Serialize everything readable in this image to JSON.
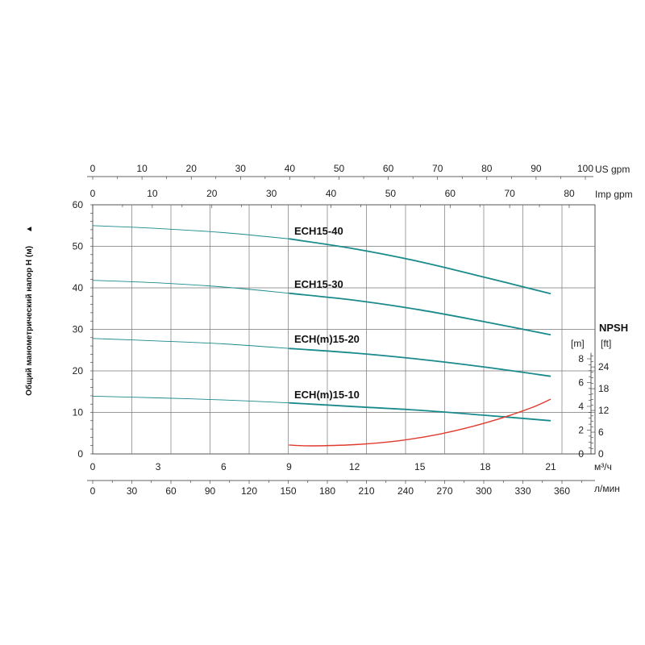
{
  "chart_data": {
    "type": "line",
    "ylabel": "Общий манометрический напор H (м)",
    "y_arrow": "▲",
    "ylim": [
      0,
      60
    ],
    "y_ticks": [
      "0",
      "10",
      "20",
      "30",
      "40",
      "50",
      "60"
    ],
    "x_m3h": {
      "ticks": [
        "0",
        "3",
        "6",
        "9",
        "12",
        "15",
        "18",
        "21"
      ],
      "unit": "м³/ч",
      "range": [
        0,
        23.4
      ]
    },
    "x_lmin": {
      "ticks": [
        "0",
        "30",
        "60",
        "90",
        "120",
        "150",
        "180",
        "210",
        "240",
        "270",
        "300",
        "330",
        "360"
      ],
      "unit": "л/мин"
    },
    "x_us_gpm": {
      "ticks": [
        "0",
        "10",
        "20",
        "30",
        "40",
        "50",
        "60",
        "70",
        "80",
        "90",
        "100"
      ],
      "unit": "US gpm"
    },
    "x_imp_gpm": {
      "ticks": [
        "0",
        "10",
        "20",
        "30",
        "40",
        "50",
        "60",
        "70",
        "80"
      ],
      "unit": "Imp gpm"
    },
    "npsh": {
      "title": "NPSH",
      "unit_m": "[m]",
      "unit_ft": "[ft]",
      "m_ticks": [
        "0",
        "2",
        "4",
        "6",
        "8"
      ],
      "ft_ticks": [
        "0",
        "6",
        "12",
        "18",
        "24"
      ],
      "ylim_m": [
        0,
        9
      ]
    },
    "series": [
      {
        "name": "ECH15-40",
        "color": "#1a8a8c",
        "x": [
          0,
          3,
          6,
          9,
          12,
          15,
          18,
          21
        ],
        "values": [
          55,
          54.3,
          53.3,
          51.8,
          49.4,
          46.3,
          42.5,
          38.6
        ]
      },
      {
        "name": "ECH15-30",
        "color": "#1a8a8c",
        "x": [
          0,
          3,
          6,
          9,
          12,
          15,
          18,
          21
        ],
        "values": [
          41.8,
          41.2,
          40.2,
          38.7,
          37,
          34.7,
          31.8,
          28.7
        ]
      },
      {
        "name": "ECH(m)15-20",
        "color": "#1a8a8c",
        "x": [
          0,
          3,
          6,
          9,
          12,
          15,
          18,
          21
        ],
        "values": [
          27.8,
          27.2,
          26.5,
          25.4,
          24.3,
          22.8,
          20.9,
          18.7
        ]
      },
      {
        "name": "ECH(m)15-10",
        "color": "#1a8a8c",
        "x": [
          0,
          3,
          6,
          9,
          12,
          15,
          18,
          21
        ],
        "values": [
          13.9,
          13.5,
          13,
          12.3,
          11.4,
          10.5,
          9.3,
          8
        ]
      }
    ],
    "npsh_curve": {
      "color": "#e03a2e",
      "x": [
        9,
        10,
        12,
        14,
        16,
        18,
        20,
        21
      ],
      "values_m": [
        0.75,
        0.68,
        0.78,
        1.1,
        1.7,
        2.6,
        3.8,
        4.6
      ]
    }
  }
}
